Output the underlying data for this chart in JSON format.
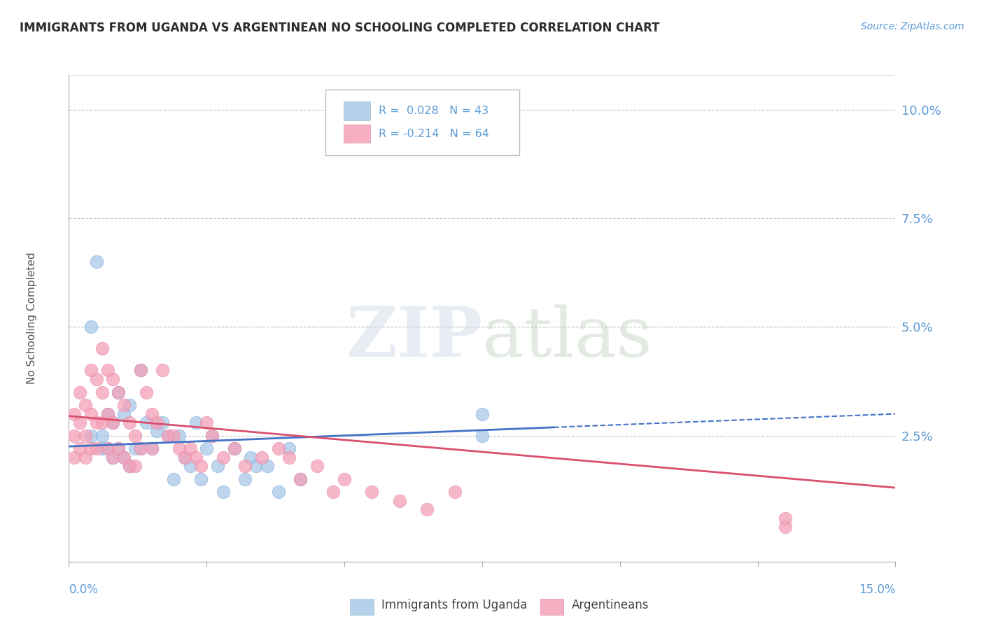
{
  "title": "IMMIGRANTS FROM UGANDA VS ARGENTINEAN NO SCHOOLING COMPLETED CORRELATION CHART",
  "source": "Source: ZipAtlas.com",
  "ylabel": "No Schooling Completed",
  "yticks": [
    0.0,
    0.025,
    0.05,
    0.075,
    0.1
  ],
  "ytick_labels": [
    "",
    "2.5%",
    "5.0%",
    "7.5%",
    "10.0%"
  ],
  "xlim": [
    0.0,
    0.15
  ],
  "ylim": [
    -0.004,
    0.108
  ],
  "legend_entry1": "R =  0.028   N = 43",
  "legend_entry2": "R = -0.214   N = 64",
  "legend_labels": [
    "Immigrants from Uganda",
    "Argentineans"
  ],
  "title_color": "#2d2d2d",
  "axis_color": "#5b9bd5",
  "grid_color": "#c0c0c0",
  "blue_scatter_x": [
    0.004,
    0.004,
    0.005,
    0.006,
    0.006,
    0.007,
    0.007,
    0.008,
    0.008,
    0.009,
    0.009,
    0.01,
    0.01,
    0.011,
    0.011,
    0.012,
    0.013,
    0.013,
    0.014,
    0.015,
    0.016,
    0.017,
    0.018,
    0.019,
    0.02,
    0.021,
    0.022,
    0.023,
    0.024,
    0.025,
    0.026,
    0.027,
    0.028,
    0.03,
    0.032,
    0.033,
    0.034,
    0.036,
    0.038,
    0.04,
    0.042,
    0.075,
    0.075
  ],
  "blue_scatter_y": [
    0.05,
    0.025,
    0.065,
    0.025,
    0.022,
    0.03,
    0.022,
    0.028,
    0.02,
    0.035,
    0.022,
    0.03,
    0.02,
    0.032,
    0.018,
    0.022,
    0.04,
    0.022,
    0.028,
    0.022,
    0.026,
    0.028,
    0.025,
    0.015,
    0.025,
    0.02,
    0.018,
    0.028,
    0.015,
    0.022,
    0.025,
    0.018,
    0.012,
    0.022,
    0.015,
    0.02,
    0.018,
    0.018,
    0.012,
    0.022,
    0.015,
    0.03,
    0.025
  ],
  "pink_scatter_x": [
    0.001,
    0.001,
    0.001,
    0.002,
    0.002,
    0.002,
    0.003,
    0.003,
    0.003,
    0.004,
    0.004,
    0.004,
    0.005,
    0.005,
    0.005,
    0.006,
    0.006,
    0.006,
    0.007,
    0.007,
    0.007,
    0.008,
    0.008,
    0.008,
    0.009,
    0.009,
    0.01,
    0.01,
    0.011,
    0.011,
    0.012,
    0.012,
    0.013,
    0.013,
    0.014,
    0.015,
    0.015,
    0.016,
    0.017,
    0.018,
    0.019,
    0.02,
    0.021,
    0.022,
    0.023,
    0.024,
    0.025,
    0.026,
    0.028,
    0.03,
    0.032,
    0.035,
    0.038,
    0.04,
    0.042,
    0.045,
    0.048,
    0.05,
    0.055,
    0.06,
    0.065,
    0.07,
    0.13,
    0.13
  ],
  "pink_scatter_y": [
    0.03,
    0.025,
    0.02,
    0.035,
    0.028,
    0.022,
    0.032,
    0.025,
    0.02,
    0.04,
    0.03,
    0.022,
    0.038,
    0.028,
    0.022,
    0.045,
    0.035,
    0.028,
    0.04,
    0.03,
    0.022,
    0.038,
    0.028,
    0.02,
    0.035,
    0.022,
    0.032,
    0.02,
    0.028,
    0.018,
    0.025,
    0.018,
    0.04,
    0.022,
    0.035,
    0.03,
    0.022,
    0.028,
    0.04,
    0.025,
    0.025,
    0.022,
    0.02,
    0.022,
    0.02,
    0.018,
    0.028,
    0.025,
    0.02,
    0.022,
    0.018,
    0.02,
    0.022,
    0.02,
    0.015,
    0.018,
    0.012,
    0.015,
    0.012,
    0.01,
    0.008,
    0.012,
    0.006,
    0.004
  ],
  "blue_line_x": [
    0.0,
    0.15
  ],
  "blue_line_y": [
    0.0225,
    0.03
  ],
  "pink_line_x": [
    0.0,
    0.15
  ],
  "pink_line_y": [
    0.0295,
    0.013
  ],
  "scatter_color_blue": "#a8c8e8",
  "scatter_color_pink": "#f4a0b8",
  "line_color_blue": "#4472c4",
  "line_color_pink": "#d94f6e"
}
